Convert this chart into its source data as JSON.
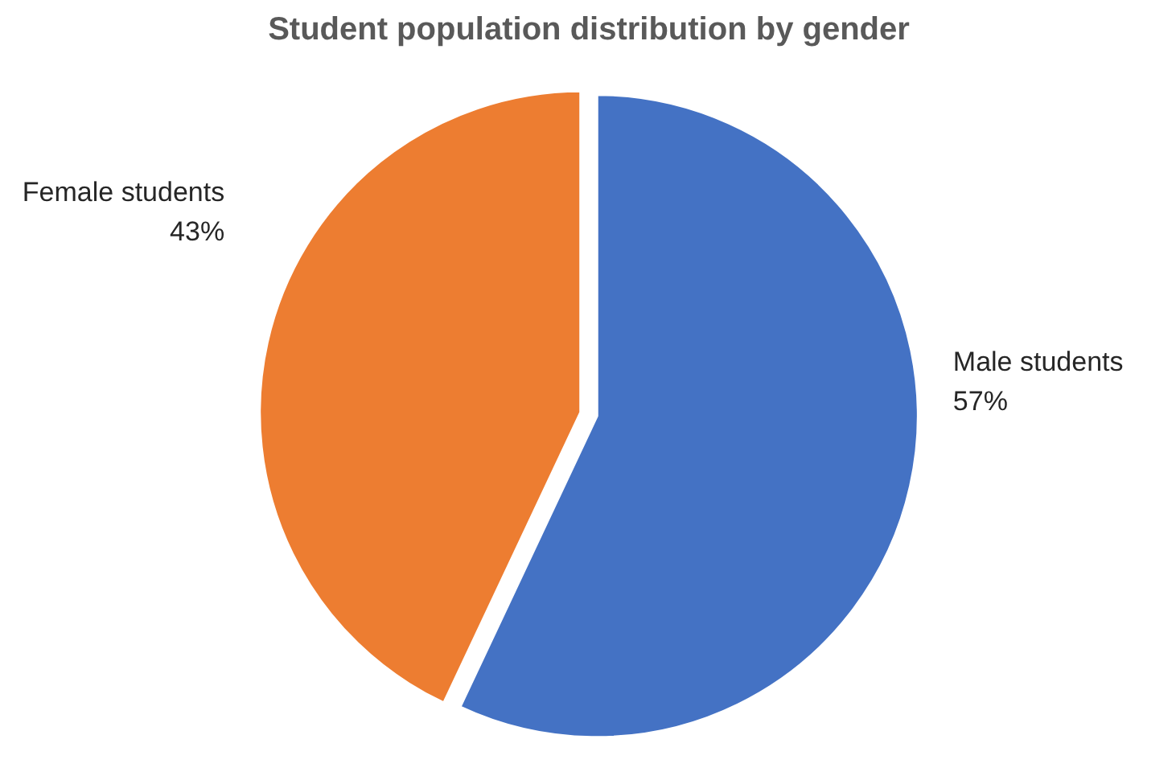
{
  "chart_data": {
    "type": "pie",
    "title": "Student population distribution by gender",
    "categories": [
      "Male students",
      "Female students"
    ],
    "values": [
      57,
      43
    ],
    "colors": [
      "#4472c4",
      "#ed7d31"
    ],
    "value_labels": [
      "57%",
      "43%"
    ]
  }
}
